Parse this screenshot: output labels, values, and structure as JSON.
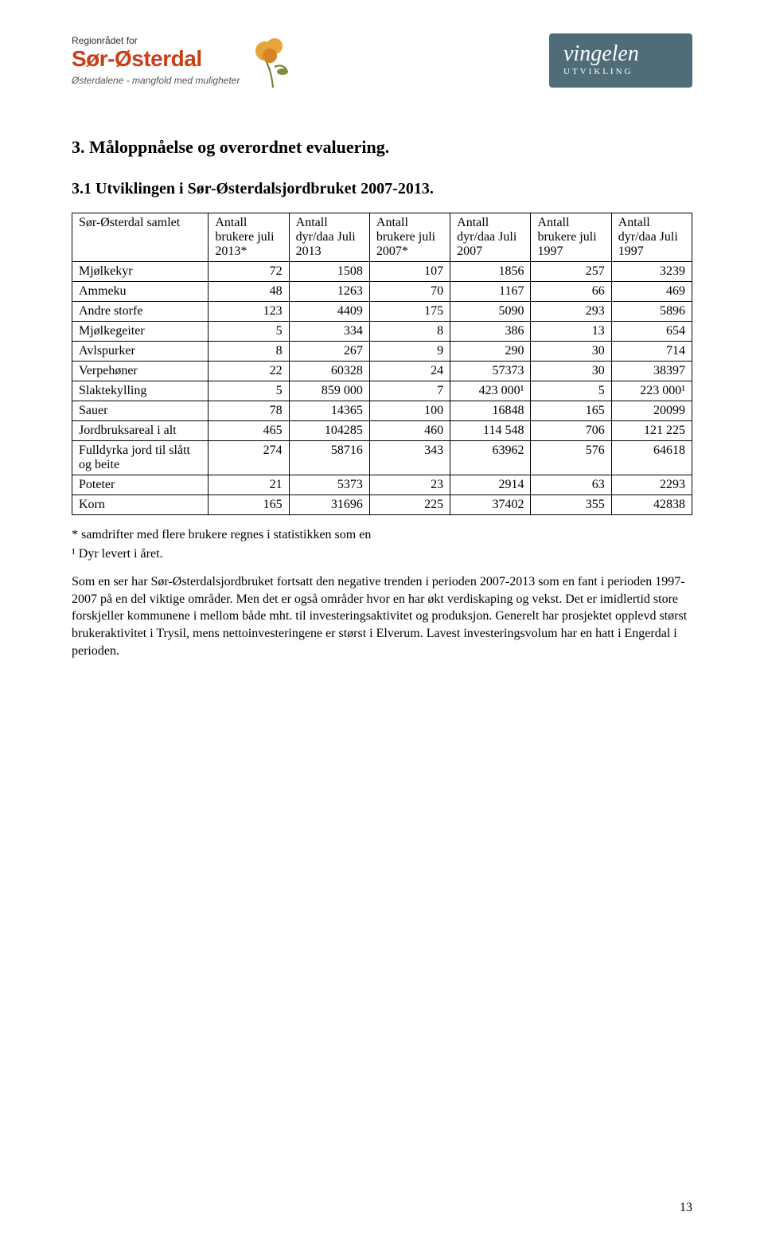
{
  "header": {
    "left_logo_sub": "Regionrådet for",
    "left_logo_main": "Sør-Østerdal",
    "left_logo_tag": "Østerdalene - mangfold med muligheter",
    "right_logo_brand": "vingelen",
    "right_logo_sub": "UTVIKLING"
  },
  "section": {
    "title": "3.  Måloppnåelse og overordnet evaluering.",
    "sub_title": "3.1   Utviklingen i Sør-Østerdalsjordbruket 2007-2013."
  },
  "table": {
    "columns": [
      {
        "k": "label",
        "label": "Sør-Østerdal samlet",
        "width": "22%",
        "align": "left"
      },
      {
        "k": "c1",
        "label": "Antall brukere juli 2013*",
        "width": "13%",
        "align": "right"
      },
      {
        "k": "c2",
        "label": "Antall dyr/daa Juli 2013",
        "width": "13%",
        "align": "right"
      },
      {
        "k": "c3",
        "label": "Antall brukere juli 2007*",
        "width": "13%",
        "align": "right"
      },
      {
        "k": "c4",
        "label": "Antall dyr/daa Juli 2007",
        "width": "13%",
        "align": "right"
      },
      {
        "k": "c5",
        "label": "Antall brukere juli 1997",
        "width": "13%",
        "align": "right"
      },
      {
        "k": "c6",
        "label": "Antall dyr/daa Juli 1997",
        "width": "13%",
        "align": "right"
      }
    ],
    "rows": [
      {
        "label": "Mjølkekyr",
        "c1": "72",
        "c2": "1508",
        "c3": "107",
        "c4": "1856",
        "c5": "257",
        "c6": "3239"
      },
      {
        "label": "Ammeku",
        "c1": "48",
        "c2": "1263",
        "c3": "70",
        "c4": "1167",
        "c5": "66",
        "c6": "469"
      },
      {
        "label": "Andre storfe",
        "c1": "123",
        "c2": "4409",
        "c3": "175",
        "c4": "5090",
        "c5": "293",
        "c6": "5896"
      },
      {
        "label": "Mjølkegeiter",
        "c1": "5",
        "c2": "334",
        "c3": "8",
        "c4": "386",
        "c5": "13",
        "c6": "654"
      },
      {
        "label": "Avlspurker",
        "c1": "8",
        "c2": "267",
        "c3": "9",
        "c4": "290",
        "c5": "30",
        "c6": "714"
      },
      {
        "label": "Verpehøner",
        "c1": "22",
        "c2": "60328",
        "c3": "24",
        "c4": "57373",
        "c5": "30",
        "c6": "38397"
      },
      {
        "label": "Slaktekylling",
        "c1": "5",
        "c2": "859 000",
        "c3": "7",
        "c4": "423 000¹",
        "c5": "5",
        "c6": "223 000¹"
      },
      {
        "label": "Sauer",
        "c1": "78",
        "c2": "14365",
        "c3": "100",
        "c4": "16848",
        "c5": "165",
        "c6": "20099"
      },
      {
        "label": "Jordbruksareal i alt",
        "c1": "465",
        "c2": "104285",
        "c3": "460",
        "c4": "114 548",
        "c5": "706",
        "c6": "121 225"
      },
      {
        "label": "Fulldyrka jord til slått og beite",
        "c1": "274",
        "c2": "58716",
        "c3": "343",
        "c4": "63962",
        "c5": "576",
        "c6": "64618"
      },
      {
        "label": "Poteter",
        "c1": "21",
        "c2": "5373",
        "c3": "23",
        "c4": "2914",
        "c5": "63",
        "c6": "2293"
      },
      {
        "label": "Korn",
        "c1": "165",
        "c2": "31696",
        "c3": "225",
        "c4": "37402",
        "c5": "355",
        "c6": "42838"
      }
    ]
  },
  "footnotes": [
    "* samdrifter med flere brukere regnes i statistikken som en",
    "¹ Dyr levert i året."
  ],
  "body_paragraph": "Som en ser har Sør-Østerdalsjordbruket fortsatt den negative trenden i perioden 2007-2013 som en fant i perioden 1997-2007 på en del viktige områder. Men det er også områder hvor en har økt verdiskaping og vekst. Det er imidlertid store forskjeller kommunene i mellom både mht. til investeringsaktivitet og produksjon. Generelt har prosjektet opplevd størst brukeraktivitet  i Trysil, mens nettoinvesteringene er størst i Elverum. Lavest investeringsvolum har en hatt i Engerdal i perioden.",
  "page_number": "13",
  "colors": {
    "text": "#000000",
    "background": "#ffffff",
    "table_border": "#000000",
    "logo_accent": "#c93f18",
    "right_logo_bg": "#4e6d78",
    "right_logo_fg": "#ffffff"
  }
}
